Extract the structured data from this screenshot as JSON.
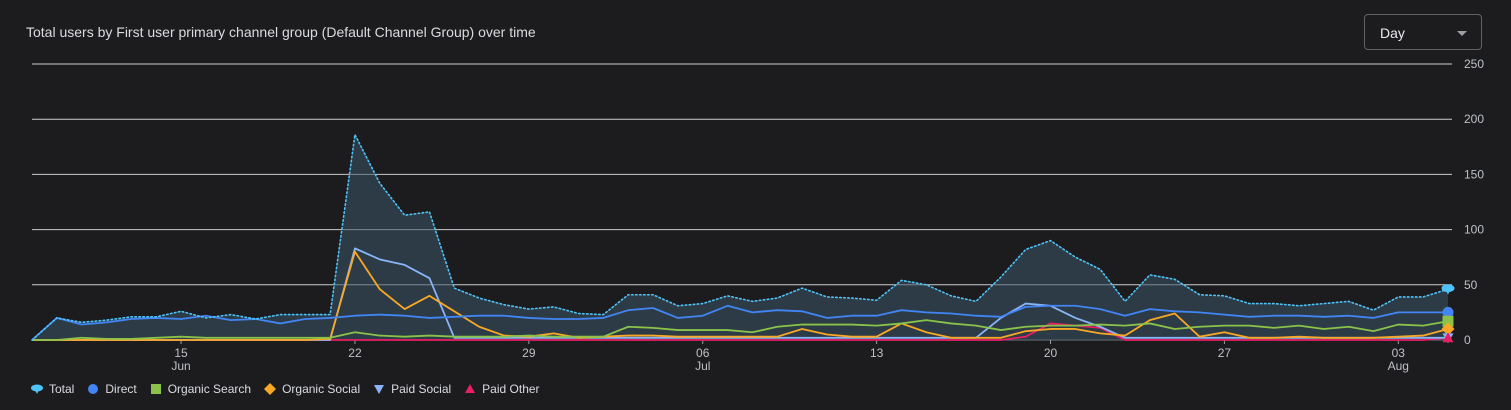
{
  "header": {
    "title": "Total users by First user primary channel group (Default Channel Group) over time"
  },
  "granularity": {
    "selected": "Day",
    "icon": "chevron-down-icon"
  },
  "chart_data": {
    "type": "line",
    "title": "Total users by First user primary channel group (Default Channel Group) over time",
    "x": [
      "Jun 9",
      "Jun 10",
      "Jun 11",
      "Jun 12",
      "Jun 13",
      "Jun 14",
      "Jun 15",
      "Jun 16",
      "Jun 17",
      "Jun 18",
      "Jun 19",
      "Jun 20",
      "Jun 21",
      "Jun 22",
      "Jun 23",
      "Jun 24",
      "Jun 25",
      "Jun 26",
      "Jun 27",
      "Jun 28",
      "Jun 29",
      "Jun 30",
      "Jul 1",
      "Jul 2",
      "Jul 3",
      "Jul 4",
      "Jul 5",
      "Jul 6",
      "Jul 7",
      "Jul 8",
      "Jul 9",
      "Jul 10",
      "Jul 11",
      "Jul 12",
      "Jul 13",
      "Jul 14",
      "Jul 15",
      "Jul 16",
      "Jul 17",
      "Jul 18",
      "Jul 19",
      "Jul 20",
      "Jul 21",
      "Jul 22",
      "Jul 23",
      "Jul 24",
      "Jul 25",
      "Jul 26",
      "Jul 27",
      "Jul 28",
      "Jul 29",
      "Jul 30",
      "Jul 31",
      "Aug 1",
      "Aug 2",
      "Aug 3",
      "Aug 4",
      "Aug 5"
    ],
    "x_tick_labels": [
      {
        "x": "Jun 15",
        "day": "15",
        "month": "Jun"
      },
      {
        "x": "Jun 22",
        "day": "22",
        "month": ""
      },
      {
        "x": "Jun 29",
        "day": "29",
        "month": ""
      },
      {
        "x": "Jul 6",
        "day": "06",
        "month": "Jul"
      },
      {
        "x": "Jul 13",
        "day": "13",
        "month": ""
      },
      {
        "x": "Jul 20",
        "day": "20",
        "month": ""
      },
      {
        "x": "Jul 27",
        "day": "27",
        "month": ""
      },
      {
        "x": "Aug 3",
        "day": "03",
        "month": "Aug"
      }
    ],
    "y_ticks": [
      "0",
      "50",
      "100",
      "150",
      "200",
      "250"
    ],
    "ylim": [
      0,
      250
    ],
    "grid": true,
    "legend_position": "bottom-left",
    "series": [
      {
        "name": "Total",
        "color": "#4fc3f7",
        "style": "dotted-area",
        "marker": "total-icon",
        "values": [
          0,
          20,
          16,
          18,
          21,
          21,
          26,
          20,
          23,
          19,
          23,
          23,
          23,
          186,
          142,
          113,
          116,
          47,
          38,
          32,
          28,
          30,
          24,
          23,
          41,
          41,
          31,
          33,
          40,
          35,
          38,
          47,
          39,
          38,
          36,
          54,
          50,
          40,
          35,
          57,
          82,
          90,
          75,
          64,
          35,
          59,
          55,
          41,
          40,
          33,
          33,
          31,
          33,
          35,
          27,
          39,
          39,
          46
        ]
      },
      {
        "name": "Direct",
        "color": "#4285f4",
        "style": "line",
        "marker": "circle-icon",
        "values": [
          0,
          20,
          14,
          16,
          19,
          20,
          19,
          22,
          18,
          19,
          15,
          19,
          20,
          22,
          23,
          22,
          20,
          21,
          22,
          22,
          20,
          19,
          19,
          20,
          27,
          29,
          20,
          22,
          31,
          25,
          27,
          26,
          20,
          22,
          22,
          27,
          25,
          24,
          22,
          21,
          30,
          31,
          31,
          28,
          22,
          28,
          26,
          25,
          23,
          21,
          22,
          22,
          21,
          22,
          20,
          25,
          25,
          25
        ]
      },
      {
        "name": "Organic Search",
        "color": "#8bc34a",
        "style": "line",
        "marker": "square-icon",
        "values": [
          0,
          0,
          2,
          1,
          1,
          2,
          3,
          2,
          2,
          2,
          2,
          2,
          2,
          7,
          4,
          3,
          4,
          3,
          3,
          3,
          4,
          3,
          3,
          3,
          12,
          11,
          9,
          9,
          9,
          7,
          12,
          14,
          14,
          14,
          13,
          15,
          18,
          15,
          13,
          9,
          12,
          13,
          13,
          14,
          13,
          15,
          10,
          12,
          13,
          13,
          11,
          13,
          10,
          12,
          8,
          14,
          13,
          17
        ]
      },
      {
        "name": "Organic Social",
        "color": "#f9a825",
        "style": "line",
        "marker": "diamond-icon",
        "values": [
          0,
          0,
          0,
          0,
          0,
          0,
          0,
          0,
          0,
          0,
          0,
          0,
          1,
          80,
          46,
          28,
          40,
          26,
          12,
          4,
          3,
          6,
          2,
          3,
          4,
          4,
          3,
          3,
          3,
          3,
          3,
          10,
          5,
          3,
          3,
          15,
          7,
          2,
          2,
          2,
          8,
          10,
          10,
          6,
          4,
          18,
          24,
          3,
          7,
          2,
          2,
          3,
          2,
          2,
          2,
          3,
          4,
          10
        ]
      },
      {
        "name": "Paid Social",
        "color": "#8ab4f8",
        "style": "line",
        "marker": "triangle-down-icon",
        "values": [
          0,
          0,
          0,
          0,
          0,
          0,
          0,
          0,
          0,
          0,
          0,
          0,
          0,
          83,
          73,
          68,
          56,
          2,
          2,
          2,
          2,
          2,
          2,
          2,
          2,
          2,
          2,
          2,
          2,
          2,
          2,
          2,
          2,
          2,
          2,
          2,
          2,
          2,
          2,
          20,
          33,
          31,
          20,
          12,
          2,
          2,
          2,
          2,
          2,
          2,
          2,
          2,
          2,
          2,
          2,
          2,
          2,
          2
        ]
      },
      {
        "name": "Paid Other",
        "color": "#e91e63",
        "style": "line",
        "marker": "triangle-up-icon",
        "values": [
          0,
          0,
          0,
          0,
          0,
          0,
          0,
          0,
          0,
          0,
          0,
          0,
          0,
          0,
          0,
          0,
          0,
          0,
          0,
          0,
          0,
          0,
          0,
          0,
          0,
          0,
          0,
          0,
          0,
          0,
          0,
          0,
          0,
          0,
          0,
          0,
          0,
          0,
          0,
          0,
          3,
          15,
          13,
          11,
          0,
          0,
          0,
          0,
          0,
          0,
          0,
          0,
          0,
          0,
          0,
          0,
          0,
          2
        ]
      }
    ]
  }
}
